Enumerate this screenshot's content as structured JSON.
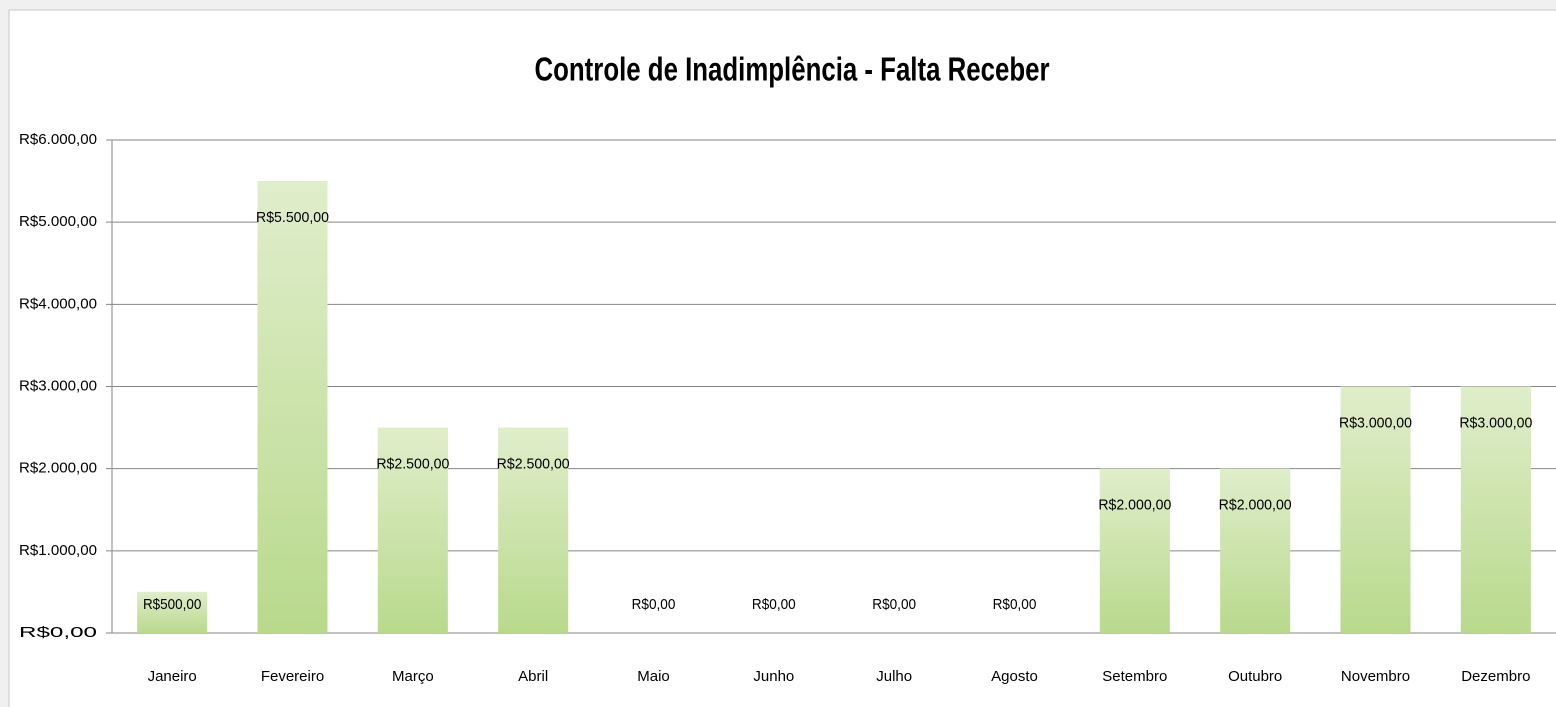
{
  "chart_data": {
    "type": "bar",
    "title": "Controle de Inadimplência - Falta Receber",
    "categories": [
      "Janeiro",
      "Fevereiro",
      "Março",
      "Abril",
      "Maio",
      "Junho",
      "Julho",
      "Agosto",
      "Setembro",
      "Outubro",
      "Novembro",
      "Dezembro"
    ],
    "values": [
      500,
      5500,
      2500,
      2500,
      0,
      0,
      0,
      0,
      2000,
      2000,
      3000,
      3000
    ],
    "value_labels": [
      "R$500,00",
      "R$5.500,00",
      "R$2.500,00",
      "R$2.500,00",
      "R$0,00",
      "R$0,00",
      "R$0,00",
      "R$0,00",
      "R$2.000,00",
      "R$2.000,00",
      "R$3.000,00",
      "R$3.000,00"
    ],
    "color": "#b9d98c",
    "ylim": [
      0,
      6000
    ],
    "yticks": [
      {
        "value": 0,
        "label": "R$0,00"
      },
      {
        "value": 1000,
        "label": "R$1.000,00"
      },
      {
        "value": 2000,
        "label": "R$2.000,00"
      },
      {
        "value": 3000,
        "label": "R$3.000,00"
      },
      {
        "value": 4000,
        "label": "R$4.000,00"
      },
      {
        "value": 5000,
        "label": "R$5.000,00"
      },
      {
        "value": 6000,
        "label": "R$6.000,00"
      }
    ],
    "grid": true
  }
}
